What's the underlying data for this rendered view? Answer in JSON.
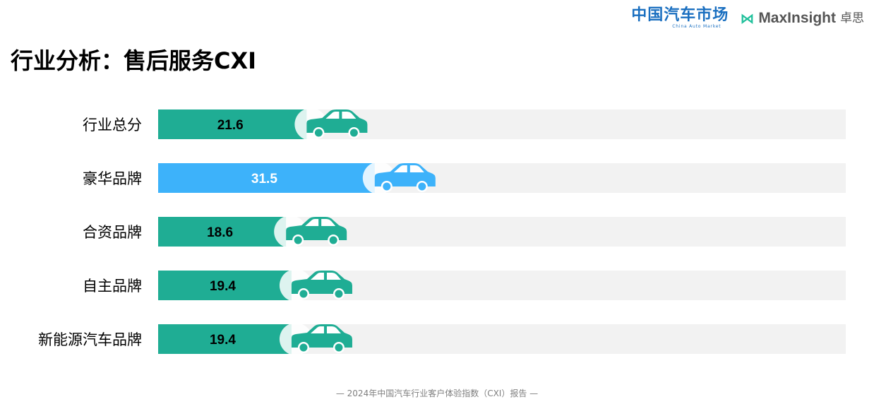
{
  "header": {
    "logo_cam_main": "中国汽车市场",
    "logo_cam_sub": "China Auto Market",
    "logo_mi_text": "MaxInsight",
    "logo_mi_cn": "卓思"
  },
  "page_title": "行业分析：售后服务CXI",
  "chart_data": {
    "type": "bar",
    "orientation": "horizontal",
    "categories": [
      "行业总分",
      "豪华品牌",
      "合资品牌",
      "自主品牌",
      "新能源汽车品牌"
    ],
    "values": [
      21.6,
      31.5,
      18.6,
      19.4,
      19.4
    ],
    "value_labels": [
      "21.6",
      "31.5",
      "18.6",
      "19.4",
      "19.4"
    ],
    "xlim": [
      0,
      100
    ],
    "grid": false,
    "legend": "none",
    "bar_colors": [
      "#1fad94",
      "#3db2fa",
      "#1fad94",
      "#1fad94",
      "#1fad94"
    ],
    "label_colors": [
      "#000000",
      "#ffffff",
      "#000000",
      "#000000",
      "#000000"
    ],
    "track_color": "#f2f2f2",
    "marker_icon": "car-icon"
  },
  "footer": "— 2024年中国汽车行业客户体验指数（CXI）报告 —"
}
